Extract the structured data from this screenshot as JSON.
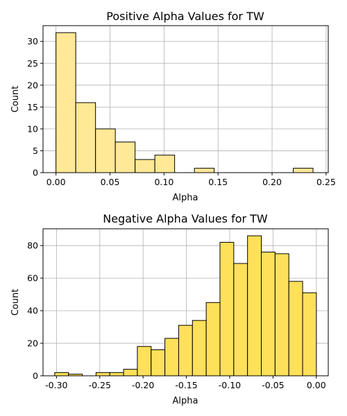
{
  "chart_data": [
    {
      "type": "bar",
      "title": "Positive Alpha Values for TW",
      "xlabel": "Alpha",
      "ylabel": "Count",
      "xlim": [
        -0.012,
        0.252
      ],
      "ylim": [
        0,
        33.6
      ],
      "grid": true,
      "bar_color": "#ffe896",
      "bin_width": 0.0183,
      "bins": [
        {
          "x0": 0.0,
          "value": 32
        },
        {
          "x0": 0.0183,
          "value": 16
        },
        {
          "x0": 0.0366,
          "value": 10
        },
        {
          "x0": 0.0549,
          "value": 7
        },
        {
          "x0": 0.0732,
          "value": 3
        },
        {
          "x0": 0.0915,
          "value": 4
        },
        {
          "x0": 0.1098,
          "value": 0
        },
        {
          "x0": 0.1281,
          "value": 1
        },
        {
          "x0": 0.1464,
          "value": 0
        },
        {
          "x0": 0.1647,
          "value": 0
        },
        {
          "x0": 0.183,
          "value": 0
        },
        {
          "x0": 0.2013,
          "value": 0
        },
        {
          "x0": 0.2196,
          "value": 1
        }
      ],
      "xticks": [
        {
          "value": 0.0,
          "label": "0.00"
        },
        {
          "value": 0.05,
          "label": "0.05"
        },
        {
          "value": 0.1,
          "label": "0.10"
        },
        {
          "value": 0.15,
          "label": "0.15"
        },
        {
          "value": 0.2,
          "label": "0.20"
        },
        {
          "value": 0.25,
          "label": "0.25"
        }
      ],
      "yticks": [
        {
          "value": 0,
          "label": "0"
        },
        {
          "value": 5,
          "label": "5"
        },
        {
          "value": 10,
          "label": "10"
        },
        {
          "value": 15,
          "label": "15"
        },
        {
          "value": 20,
          "label": "20"
        },
        {
          "value": 25,
          "label": "25"
        },
        {
          "value": 30,
          "label": "30"
        }
      ]
    },
    {
      "type": "bar",
      "title": "Negative Alpha Values for TW",
      "xlabel": "Alpha",
      "ylabel": "Count",
      "xlim": [
        -0.3155,
        0.0138
      ],
      "ylim": [
        0,
        90.3
      ],
      "grid": true,
      "bar_color": "#ffe05a",
      "bin_width": 0.0159,
      "bins": [
        {
          "x0": -0.302,
          "value": 2
        },
        {
          "x0": -0.2861,
          "value": 1
        },
        {
          "x0": -0.2702,
          "value": 0
        },
        {
          "x0": -0.2543,
          "value": 2
        },
        {
          "x0": -0.2384,
          "value": 2
        },
        {
          "x0": -0.2225,
          "value": 4
        },
        {
          "x0": -0.2066,
          "value": 18
        },
        {
          "x0": -0.1907,
          "value": 16
        },
        {
          "x0": -0.1748,
          "value": 23
        },
        {
          "x0": -0.1589,
          "value": 31
        },
        {
          "x0": -0.143,
          "value": 34
        },
        {
          "x0": -0.1271,
          "value": 45
        },
        {
          "x0": -0.1112,
          "value": 82
        },
        {
          "x0": -0.0953,
          "value": 69
        },
        {
          "x0": -0.0794,
          "value": 86
        },
        {
          "x0": -0.0635,
          "value": 76
        },
        {
          "x0": -0.0476,
          "value": 75
        },
        {
          "x0": -0.0317,
          "value": 58
        },
        {
          "x0": -0.0158,
          "value": 51
        }
      ],
      "xticks": [
        {
          "value": -0.3,
          "label": "-0.30"
        },
        {
          "value": -0.25,
          "label": "-0.25"
        },
        {
          "value": -0.2,
          "label": "-0.20"
        },
        {
          "value": -0.15,
          "label": "-0.15"
        },
        {
          "value": -0.1,
          "label": "-0.10"
        },
        {
          "value": -0.05,
          "label": "-0.05"
        },
        {
          "value": 0.0,
          "label": "0.00"
        }
      ],
      "yticks": [
        {
          "value": 0,
          "label": "0"
        },
        {
          "value": 20,
          "label": "20"
        },
        {
          "value": 40,
          "label": "40"
        },
        {
          "value": 60,
          "label": "60"
        },
        {
          "value": 80,
          "label": "80"
        }
      ]
    }
  ]
}
